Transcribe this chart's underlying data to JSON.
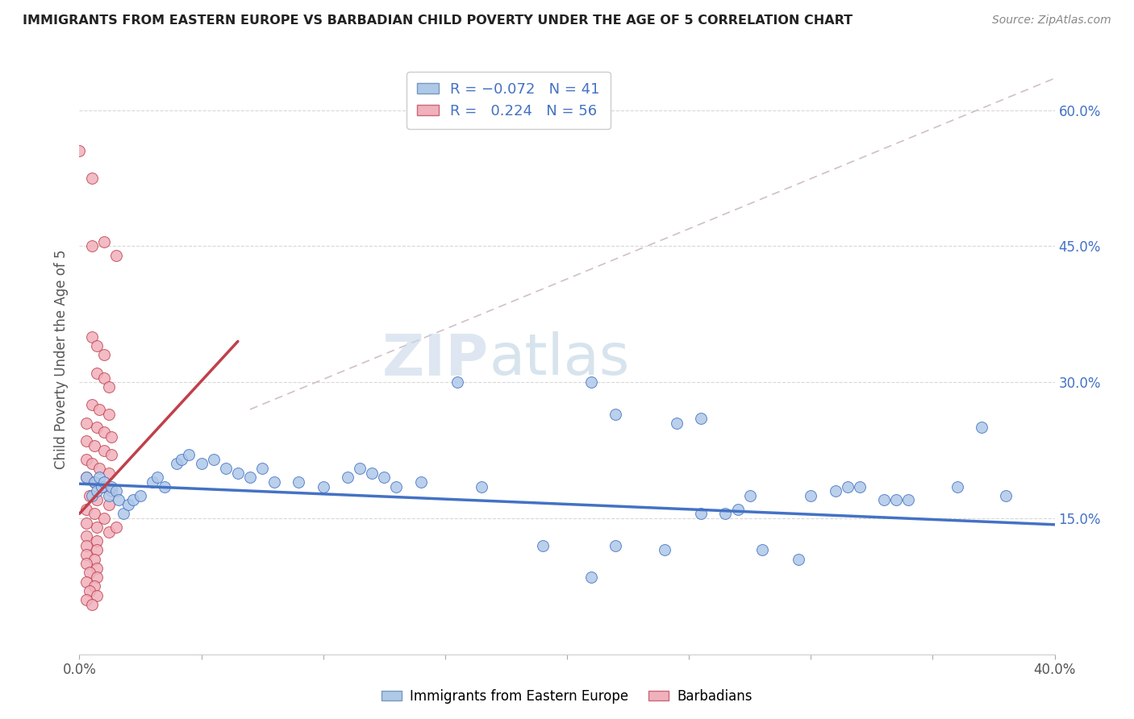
{
  "title": "IMMIGRANTS FROM EASTERN EUROPE VS BARBADIAN CHILD POVERTY UNDER THE AGE OF 5 CORRELATION CHART",
  "source": "Source: ZipAtlas.com",
  "ylabel": "Child Poverty Under the Age of 5",
  "xlim": [
    0.0,
    0.4
  ],
  "ylim": [
    0.0,
    0.65
  ],
  "background_color": "#ffffff",
  "color_blue": "#aec8e8",
  "color_pink": "#f0b0bc",
  "line_blue": "#4472c4",
  "line_pink": "#c0404a",
  "grid_color": "#d8d8d8",
  "blue_scatter": [
    [
      0.003,
      0.195
    ],
    [
      0.005,
      0.175
    ],
    [
      0.006,
      0.19
    ],
    [
      0.007,
      0.18
    ],
    [
      0.008,
      0.195
    ],
    [
      0.009,
      0.185
    ],
    [
      0.01,
      0.19
    ],
    [
      0.012,
      0.175
    ],
    [
      0.013,
      0.185
    ],
    [
      0.015,
      0.18
    ],
    [
      0.016,
      0.17
    ],
    [
      0.018,
      0.155
    ],
    [
      0.02,
      0.165
    ],
    [
      0.022,
      0.17
    ],
    [
      0.025,
      0.175
    ],
    [
      0.03,
      0.19
    ],
    [
      0.032,
      0.195
    ],
    [
      0.035,
      0.185
    ],
    [
      0.04,
      0.21
    ],
    [
      0.042,
      0.215
    ],
    [
      0.045,
      0.22
    ],
    [
      0.05,
      0.21
    ],
    [
      0.055,
      0.215
    ],
    [
      0.06,
      0.205
    ],
    [
      0.065,
      0.2
    ],
    [
      0.07,
      0.195
    ],
    [
      0.075,
      0.205
    ],
    [
      0.08,
      0.19
    ],
    [
      0.09,
      0.19
    ],
    [
      0.1,
      0.185
    ],
    [
      0.11,
      0.195
    ],
    [
      0.115,
      0.205
    ],
    [
      0.12,
      0.2
    ],
    [
      0.125,
      0.195
    ],
    [
      0.13,
      0.185
    ],
    [
      0.14,
      0.19
    ],
    [
      0.155,
      0.3
    ],
    [
      0.165,
      0.185
    ],
    [
      0.22,
      0.12
    ],
    [
      0.24,
      0.115
    ],
    [
      0.255,
      0.155
    ],
    [
      0.265,
      0.155
    ],
    [
      0.27,
      0.16
    ],
    [
      0.275,
      0.175
    ],
    [
      0.28,
      0.115
    ],
    [
      0.295,
      0.105
    ],
    [
      0.3,
      0.175
    ],
    [
      0.31,
      0.18
    ],
    [
      0.315,
      0.185
    ],
    [
      0.32,
      0.185
    ],
    [
      0.33,
      0.17
    ],
    [
      0.335,
      0.17
    ],
    [
      0.34,
      0.17
    ],
    [
      0.36,
      0.185
    ],
    [
      0.37,
      0.25
    ],
    [
      0.38,
      0.175
    ],
    [
      0.21,
      0.3
    ],
    [
      0.22,
      0.265
    ],
    [
      0.245,
      0.255
    ],
    [
      0.255,
      0.26
    ],
    [
      0.19,
      0.12
    ],
    [
      0.21,
      0.085
    ]
  ],
  "pink_scatter": [
    [
      0.0,
      0.555
    ],
    [
      0.005,
      0.525
    ],
    [
      0.005,
      0.45
    ],
    [
      0.01,
      0.455
    ],
    [
      0.015,
      0.44
    ],
    [
      0.005,
      0.35
    ],
    [
      0.007,
      0.34
    ],
    [
      0.01,
      0.33
    ],
    [
      0.007,
      0.31
    ],
    [
      0.01,
      0.305
    ],
    [
      0.012,
      0.295
    ],
    [
      0.005,
      0.275
    ],
    [
      0.008,
      0.27
    ],
    [
      0.012,
      0.265
    ],
    [
      0.003,
      0.255
    ],
    [
      0.007,
      0.25
    ],
    [
      0.01,
      0.245
    ],
    [
      0.013,
      0.24
    ],
    [
      0.003,
      0.235
    ],
    [
      0.006,
      0.23
    ],
    [
      0.01,
      0.225
    ],
    [
      0.013,
      0.22
    ],
    [
      0.003,
      0.215
    ],
    [
      0.005,
      0.21
    ],
    [
      0.008,
      0.205
    ],
    [
      0.012,
      0.2
    ],
    [
      0.003,
      0.195
    ],
    [
      0.006,
      0.19
    ],
    [
      0.01,
      0.185
    ],
    [
      0.013,
      0.18
    ],
    [
      0.004,
      0.175
    ],
    [
      0.007,
      0.17
    ],
    [
      0.012,
      0.165
    ],
    [
      0.003,
      0.16
    ],
    [
      0.006,
      0.155
    ],
    [
      0.01,
      0.15
    ],
    [
      0.003,
      0.145
    ],
    [
      0.007,
      0.14
    ],
    [
      0.012,
      0.135
    ],
    [
      0.003,
      0.13
    ],
    [
      0.007,
      0.125
    ],
    [
      0.003,
      0.12
    ],
    [
      0.007,
      0.115
    ],
    [
      0.003,
      0.11
    ],
    [
      0.006,
      0.105
    ],
    [
      0.003,
      0.1
    ],
    [
      0.007,
      0.095
    ],
    [
      0.004,
      0.09
    ],
    [
      0.007,
      0.085
    ],
    [
      0.003,
      0.08
    ],
    [
      0.006,
      0.075
    ],
    [
      0.004,
      0.07
    ],
    [
      0.007,
      0.065
    ],
    [
      0.003,
      0.06
    ],
    [
      0.005,
      0.055
    ],
    [
      0.015,
      0.14
    ]
  ],
  "ytick_positions": [
    0.15,
    0.3,
    0.45,
    0.6
  ],
  "ytick_labels": [
    "15.0%",
    "30.0%",
    "45.0%",
    "60.0%"
  ],
  "xtick_positions": [
    0.0,
    0.05,
    0.1,
    0.15,
    0.2,
    0.25,
    0.3,
    0.35,
    0.4
  ],
  "xtick_labels": [
    "0.0%",
    "",
    "",
    "",
    "",
    "",
    "",
    "",
    "40.0%"
  ]
}
